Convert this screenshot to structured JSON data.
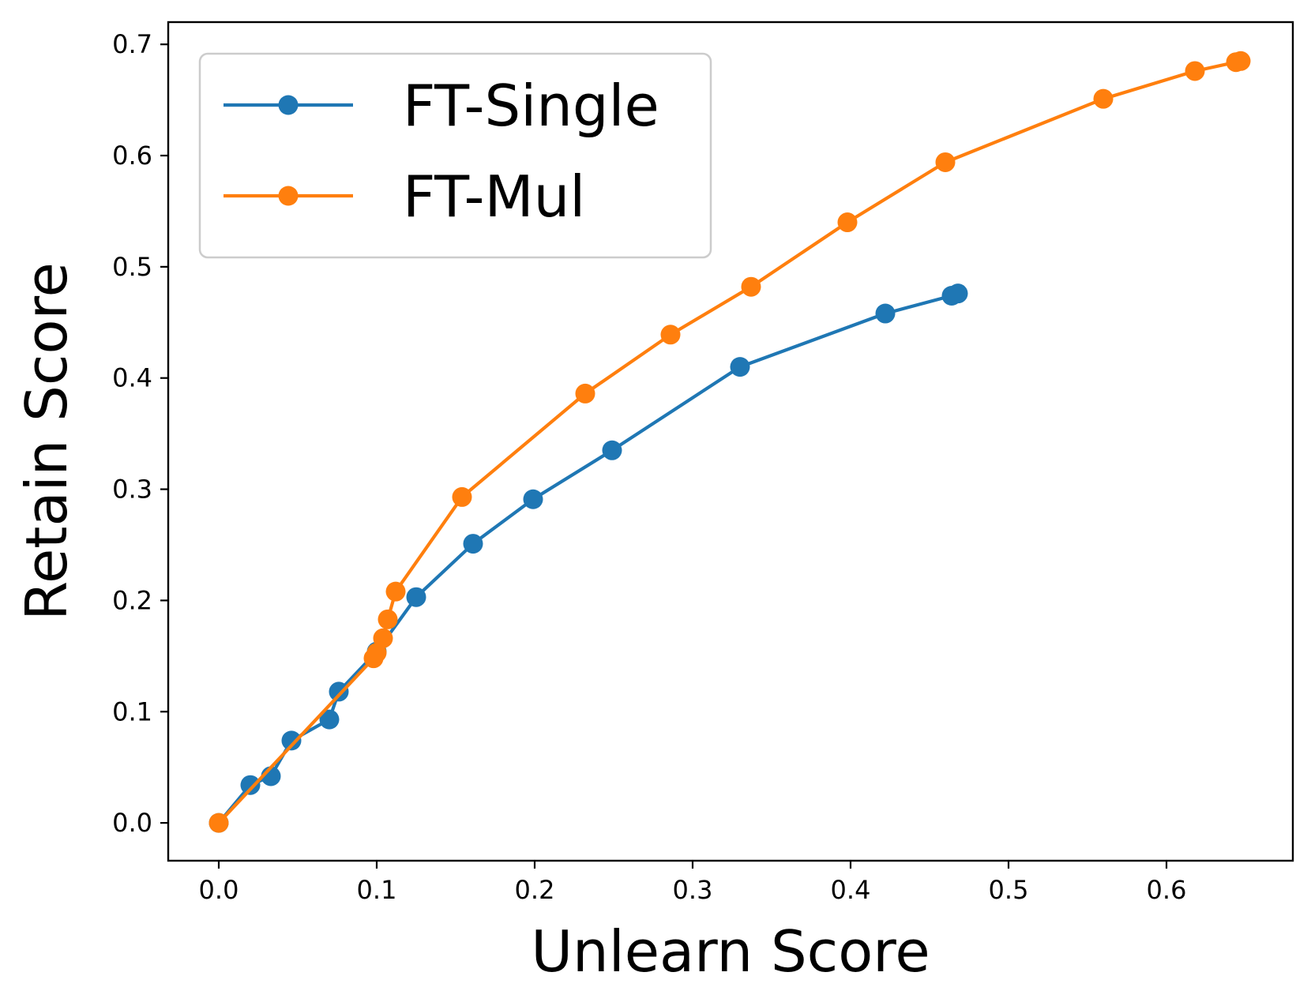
{
  "chart_data": {
    "type": "line",
    "xlabel": "Unlearn Score",
    "ylabel": "Retain Score",
    "xlim": [
      -0.032,
      0.68
    ],
    "ylim": [
      -0.034,
      0.72
    ],
    "xticks": [
      0.0,
      0.1,
      0.2,
      0.3,
      0.4,
      0.5,
      0.6
    ],
    "xtick_labels": [
      "0.0",
      "0.1",
      "0.2",
      "0.3",
      "0.4",
      "0.5",
      "0.6"
    ],
    "yticks": [
      0.0,
      0.1,
      0.2,
      0.3,
      0.4,
      0.5,
      0.6,
      0.7
    ],
    "ytick_labels": [
      "0.0",
      "0.1",
      "0.2",
      "0.3",
      "0.4",
      "0.5",
      "0.6",
      "0.7"
    ],
    "grid": false,
    "legend_position": "upper-left",
    "series": [
      {
        "name": "FT-Single",
        "color": "#1f77b4",
        "x": [
          0.0,
          0.02,
          0.033,
          0.046,
          0.07,
          0.076,
          0.1,
          0.125,
          0.161,
          0.199,
          0.249,
          0.33,
          0.422,
          0.464,
          0.468
        ],
        "y": [
          0.0,
          0.034,
          0.042,
          0.074,
          0.093,
          0.118,
          0.154,
          0.203,
          0.251,
          0.291,
          0.335,
          0.41,
          0.458,
          0.474,
          0.476
        ]
      },
      {
        "name": "FT-Mul",
        "color": "#ff7f0e",
        "x": [
          0.0,
          0.098,
          0.1,
          0.104,
          0.107,
          0.112,
          0.154,
          0.232,
          0.286,
          0.337,
          0.398,
          0.46,
          0.56,
          0.618,
          0.644,
          0.647
        ],
        "y": [
          0.0,
          0.148,
          0.153,
          0.166,
          0.183,
          0.208,
          0.293,
          0.386,
          0.439,
          0.482,
          0.54,
          0.594,
          0.651,
          0.676,
          0.684,
          0.685
        ]
      }
    ]
  }
}
